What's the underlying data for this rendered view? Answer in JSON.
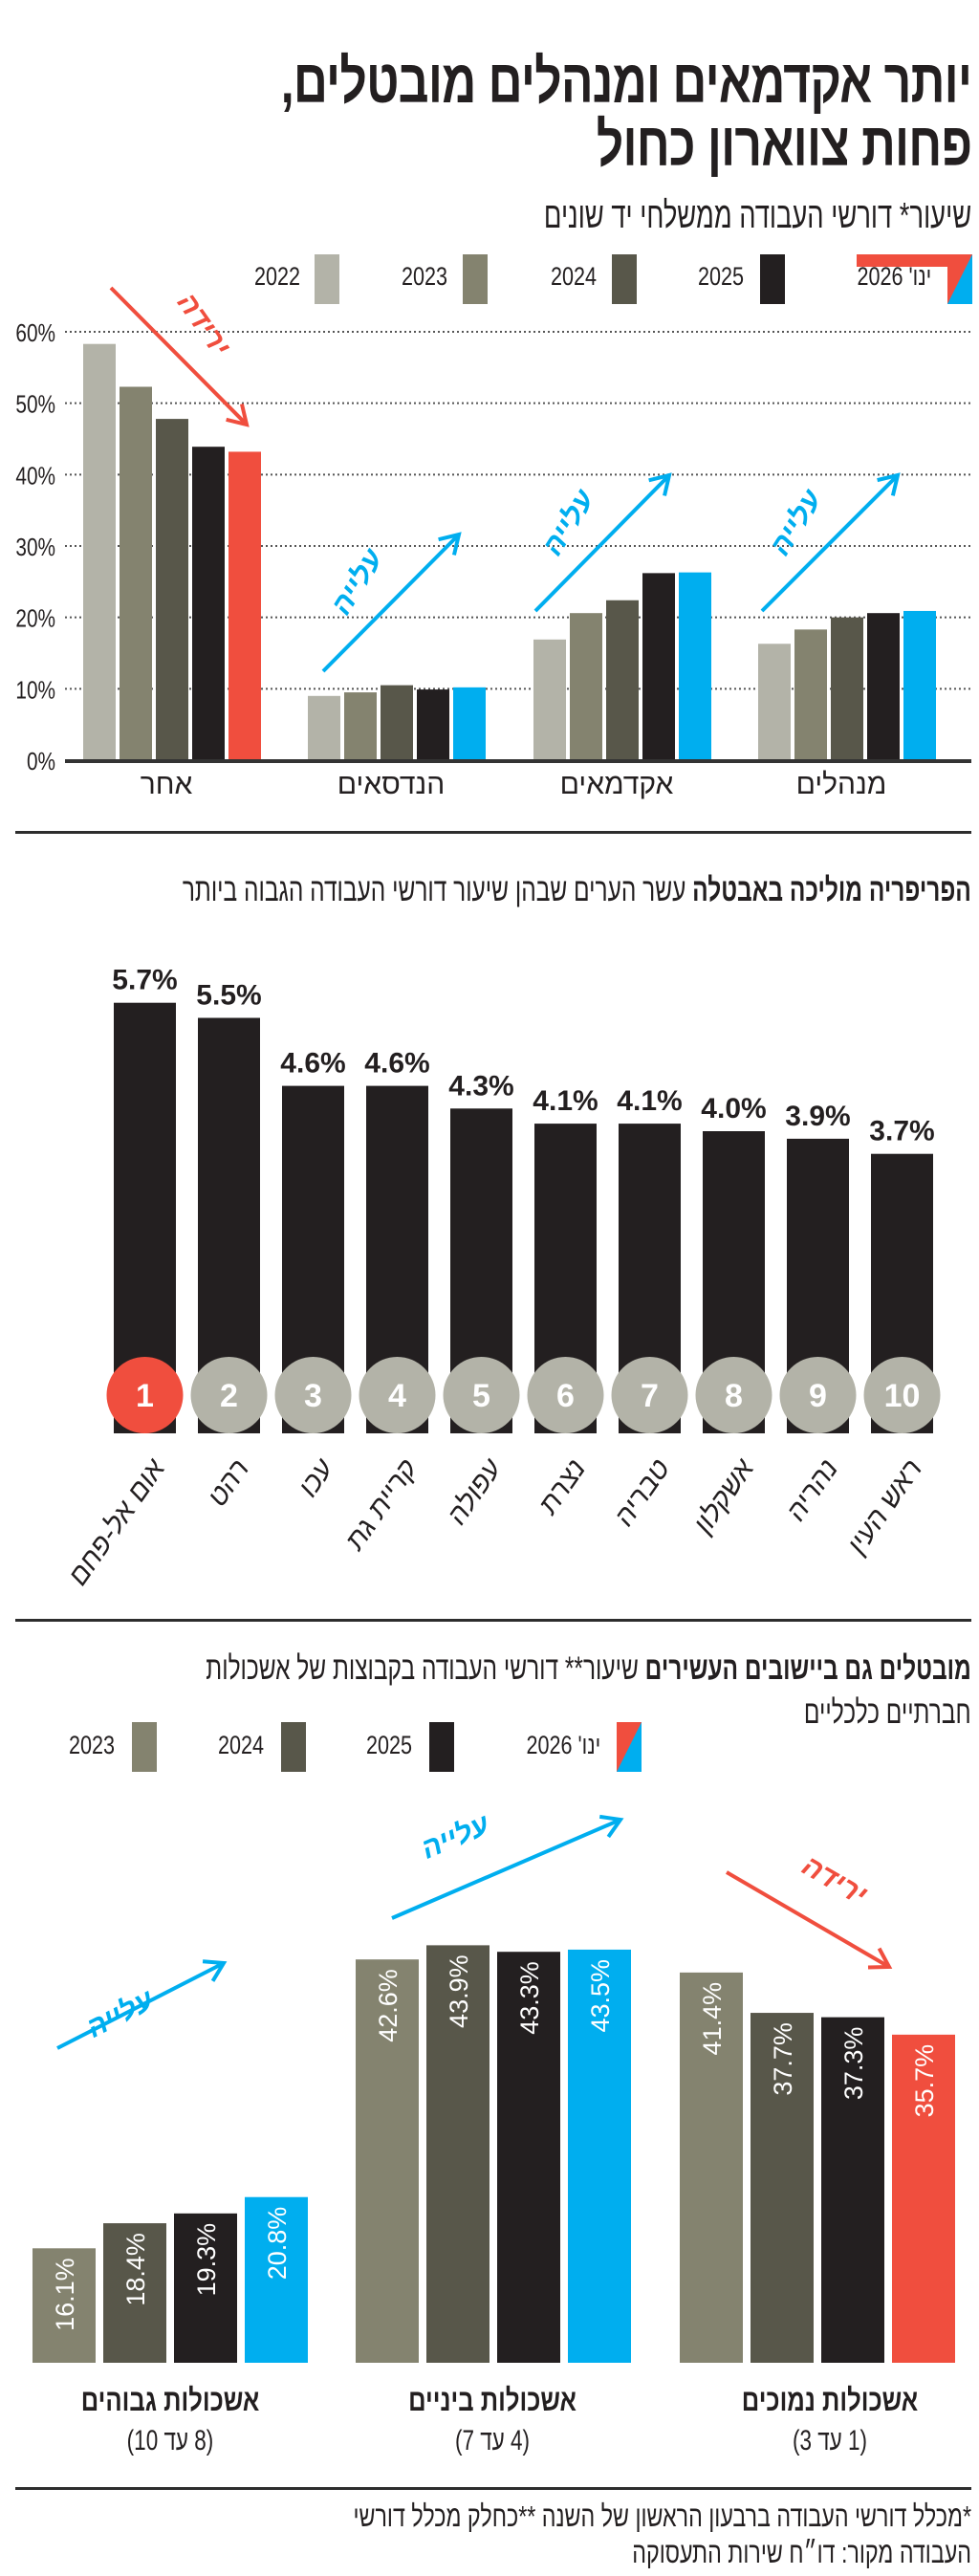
{
  "header": {
    "title_line1": "יותר אקדמאים ומנהלים מובטלים,",
    "title_line2": "פחות צווארון כחול",
    "subtitle": "שיעור* דורשי העבודה ממשלחי יד שונים"
  },
  "colors": {
    "y2022": "#b3b3a8",
    "y2023": "#84836f",
    "y2024": "#58574a",
    "y2025": "#231f20",
    "red": "#f04e3e",
    "blue": "#00aeef",
    "circle_gray": "#b3b3a8"
  },
  "legend1": [
    "2022",
    "2023",
    "2024",
    "2025",
    "ינו' 2026"
  ],
  "section2": {
    "title_bold": "הפריפריה  מוליכה באבטלה",
    "title_regular": "עשר הערים שבהן שיעור דורשי העבודה הגבוה ביותר"
  },
  "section3": {
    "title_bold": "מובטלים גם ביישובים העשירים",
    "title_regular": "שיעור** דורשי העבודה בקבוצות של אשכולות",
    "title_line2": "חברתיים כלכליים",
    "group_subs": [
      "(8 עד 10)",
      "(4 עד 7)",
      "(1 עד 3)"
    ]
  },
  "legend3": [
    "2023",
    "2024",
    "2025",
    "ינו' 2026"
  ],
  "footnote": {
    "line1": "*מכלל דורשי העבודה ברבעון הראשון של השנה **כחלק מכלל דורשי",
    "line2": "העבודה מקור: דו״ח שירות התעסוקה"
  },
  "chart_data": [
    {
      "type": "bar",
      "title": "שיעור* דורשי העבודה ממשלחי יד שונים",
      "categories": [
        "אחר",
        "הנדסאים",
        "אקדמאים",
        "מנהלים"
      ],
      "series": [
        {
          "name": "2022",
          "values": [
            58.3,
            9.0,
            16.9,
            16.3
          ]
        },
        {
          "name": "2023",
          "values": [
            52.3,
            9.5,
            20.6,
            18.3
          ]
        },
        {
          "name": "2024",
          "values": [
            47.8,
            10.5,
            22.4,
            20.0
          ]
        },
        {
          "name": "2025",
          "values": [
            43.9,
            9.9,
            26.2,
            20.6
          ]
        },
        {
          "name": "ינו' 2026",
          "values": [
            43.2,
            10.2,
            26.3,
            20.9
          ]
        }
      ],
      "yticks": [
        "0%",
        "10%",
        "20%",
        "30%",
        "40%",
        "50%",
        "60%"
      ],
      "ylim": [
        0,
        60
      ],
      "grid": true,
      "legend": "top",
      "annotations": [
        "ירידה",
        "עלייה",
        "עלייה",
        "עלייה"
      ]
    },
    {
      "type": "bar",
      "title": "הפריפריה  מוליכה באבטלה עשר הערים שבהן שיעור דורשי העבודה הגבוה ביותר",
      "categories": [
        "אום אל-פחם",
        "רהט",
        "עכו",
        "קריית גת",
        "עפולה",
        "נצרת",
        "טבריה",
        "אשקלון",
        "נהריה",
        "ראש העין"
      ],
      "values": [
        5.7,
        5.5,
        4.6,
        4.6,
        4.3,
        4.1,
        4.1,
        4.0,
        3.9,
        3.7
      ],
      "labels": [
        "5.7%",
        "5.5%",
        "4.6%",
        "4.6%",
        "4.3%",
        "4.1%",
        "4.1%",
        "4.0%",
        "3.9%",
        "3.7%"
      ],
      "ranks": [
        "1",
        "2",
        "3",
        "4",
        "5",
        "6",
        "7",
        "8",
        "9",
        "10"
      ]
    },
    {
      "type": "bar",
      "title": "מובטלים גם ביישובים העשירים",
      "categories": [
        "אשכולות גבוהים",
        "אשכולות ביניים",
        "אשכולות נמוכים"
      ],
      "series": [
        {
          "name": "2023",
          "values": [
            16.1,
            42.6,
            41.4
          ],
          "labels": [
            "16.1%",
            "42.6%",
            "41.4%"
          ]
        },
        {
          "name": "2024",
          "values": [
            18.4,
            43.9,
            37.7
          ],
          "labels": [
            "18.4%",
            "43.9%",
            "37.7%"
          ]
        },
        {
          "name": "2025",
          "values": [
            19.3,
            43.3,
            37.3
          ],
          "labels": [
            "19.3%",
            "43.3%",
            "37.3%"
          ]
        },
        {
          "name": "ינו' 2026",
          "values": [
            20.8,
            43.5,
            35.7
          ],
          "labels": [
            "20.8%",
            "43.5%",
            "35.7%"
          ]
        }
      ],
      "annotations": [
        "עלייה",
        "עלייה",
        "ירידה"
      ]
    }
  ]
}
